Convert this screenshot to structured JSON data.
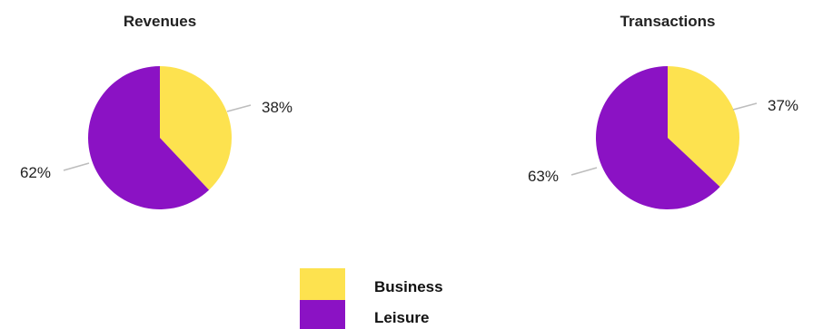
{
  "chart_data": [
    {
      "type": "pie",
      "title": "Revenues",
      "slices": [
        {
          "label": "Business",
          "value": 38,
          "display": "38%"
        },
        {
          "label": "Leisure",
          "value": 62,
          "display": "62%"
        }
      ],
      "start_angle_deg": 0,
      "direction": "clockwise"
    },
    {
      "type": "pie",
      "title": "Transactions",
      "slices": [
        {
          "label": "Business",
          "value": 37,
          "display": "37%"
        },
        {
          "label": "Leisure",
          "value": 63,
          "display": "63%"
        }
      ],
      "start_angle_deg": 0,
      "direction": "clockwise"
    }
  ],
  "legend": {
    "placement": "bottom-center",
    "items": [
      {
        "label": "Business",
        "color": "#fde24f"
      },
      {
        "label": "Leisure",
        "color": "#8b12c4"
      }
    ]
  },
  "colors": {
    "Business": "#fde24f",
    "Leisure": "#8b12c4"
  }
}
